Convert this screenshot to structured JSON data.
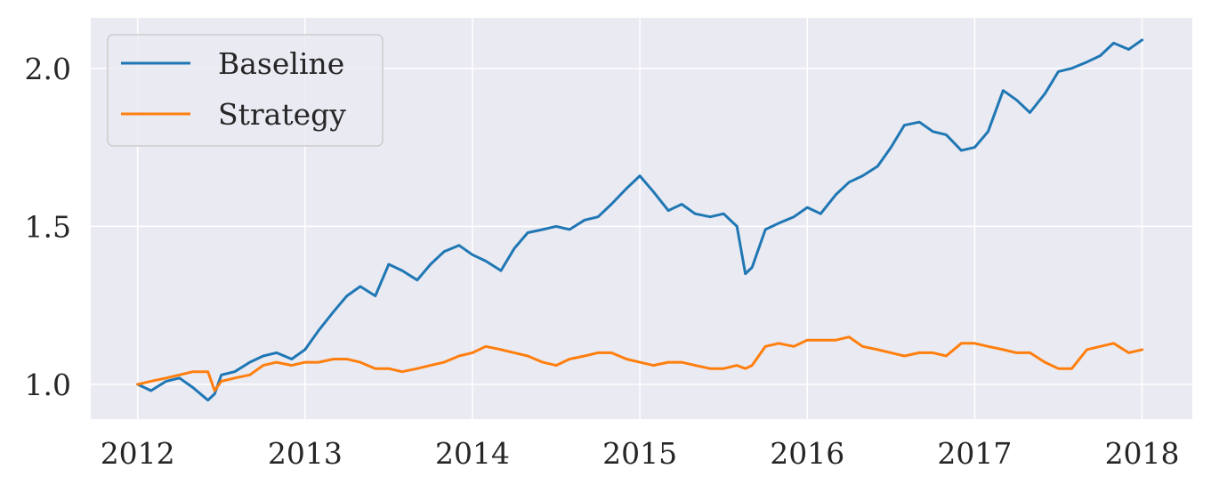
{
  "chart_data": {
    "type": "line",
    "title": "",
    "xlabel": "",
    "ylabel": "",
    "xlim": [
      2011.72,
      2018.3
    ],
    "ylim": [
      0.89,
      2.16
    ],
    "grid": true,
    "legend": {
      "position": "top-left",
      "entries": [
        "Baseline",
        "Strategy"
      ]
    },
    "colors": {
      "Baseline": "#1f77b4",
      "Strategy": "#ff7f0e",
      "background": "#eaeaf2",
      "grid": "#ffffff"
    },
    "x_ticks": [
      2012,
      2013,
      2014,
      2015,
      2016,
      2017,
      2018
    ],
    "x_tick_labels": [
      "2012",
      "2013",
      "2014",
      "2015",
      "2016",
      "2017",
      "2018"
    ],
    "y_ticks": [
      1.0,
      1.5,
      2.0
    ],
    "y_tick_labels": [
      "1.0",
      "1.5",
      "2.0"
    ],
    "series": [
      {
        "name": "Baseline",
        "color": "#1f77b4",
        "x": [
          2012.0,
          2012.08,
          2012.17,
          2012.25,
          2012.33,
          2012.42,
          2012.46,
          2012.5,
          2012.58,
          2012.67,
          2012.75,
          2012.83,
          2012.92,
          2013.0,
          2013.08,
          2013.17,
          2013.25,
          2013.33,
          2013.42,
          2013.5,
          2013.58,
          2013.67,
          2013.75,
          2013.83,
          2013.92,
          2014.0,
          2014.08,
          2014.17,
          2014.25,
          2014.33,
          2014.42,
          2014.5,
          2014.58,
          2014.67,
          2014.75,
          2014.83,
          2014.92,
          2015.0,
          2015.08,
          2015.17,
          2015.25,
          2015.33,
          2015.42,
          2015.5,
          2015.58,
          2015.63,
          2015.67,
          2015.75,
          2015.83,
          2015.92,
          2016.0,
          2016.08,
          2016.17,
          2016.25,
          2016.33,
          2016.42,
          2016.5,
          2016.58,
          2016.67,
          2016.75,
          2016.83,
          2016.92,
          2017.0,
          2017.08,
          2017.17,
          2017.25,
          2017.33,
          2017.42,
          2017.5,
          2017.58,
          2017.67,
          2017.75,
          2017.83,
          2017.92,
          2018.0
        ],
        "values": [
          1.0,
          0.98,
          1.01,
          1.02,
          0.99,
          0.95,
          0.97,
          1.03,
          1.04,
          1.07,
          1.09,
          1.1,
          1.08,
          1.11,
          1.17,
          1.23,
          1.28,
          1.31,
          1.28,
          1.38,
          1.36,
          1.33,
          1.38,
          1.42,
          1.44,
          1.41,
          1.39,
          1.36,
          1.43,
          1.48,
          1.49,
          1.5,
          1.49,
          1.52,
          1.53,
          1.57,
          1.62,
          1.66,
          1.61,
          1.55,
          1.57,
          1.54,
          1.53,
          1.54,
          1.5,
          1.35,
          1.37,
          1.49,
          1.51,
          1.53,
          1.56,
          1.54,
          1.6,
          1.64,
          1.66,
          1.69,
          1.75,
          1.82,
          1.83,
          1.8,
          1.79,
          1.74,
          1.75,
          1.8,
          1.93,
          1.9,
          1.86,
          1.92,
          1.99,
          2.0,
          2.02,
          2.04,
          2.08,
          2.06,
          2.09
        ]
      },
      {
        "name": "Strategy",
        "color": "#ff7f0e",
        "x": [
          2012.0,
          2012.08,
          2012.17,
          2012.25,
          2012.33,
          2012.42,
          2012.46,
          2012.5,
          2012.58,
          2012.67,
          2012.75,
          2012.83,
          2012.92,
          2013.0,
          2013.08,
          2013.17,
          2013.25,
          2013.33,
          2013.42,
          2013.5,
          2013.58,
          2013.67,
          2013.75,
          2013.83,
          2013.92,
          2014.0,
          2014.08,
          2014.17,
          2014.25,
          2014.33,
          2014.42,
          2014.5,
          2014.58,
          2014.67,
          2014.75,
          2014.83,
          2014.92,
          2015.0,
          2015.08,
          2015.17,
          2015.25,
          2015.33,
          2015.42,
          2015.5,
          2015.58,
          2015.63,
          2015.67,
          2015.75,
          2015.83,
          2015.92,
          2016.0,
          2016.08,
          2016.17,
          2016.25,
          2016.33,
          2016.42,
          2016.5,
          2016.58,
          2016.67,
          2016.75,
          2016.83,
          2016.92,
          2017.0,
          2017.08,
          2017.17,
          2017.25,
          2017.33,
          2017.42,
          2017.5,
          2017.58,
          2017.67,
          2017.75,
          2017.83,
          2017.92,
          2018.0
        ],
        "values": [
          1.0,
          1.01,
          1.02,
          1.03,
          1.04,
          1.04,
          0.98,
          1.01,
          1.02,
          1.03,
          1.06,
          1.07,
          1.06,
          1.07,
          1.07,
          1.08,
          1.08,
          1.07,
          1.05,
          1.05,
          1.04,
          1.05,
          1.06,
          1.07,
          1.09,
          1.1,
          1.12,
          1.11,
          1.1,
          1.09,
          1.07,
          1.06,
          1.08,
          1.09,
          1.1,
          1.1,
          1.08,
          1.07,
          1.06,
          1.07,
          1.07,
          1.06,
          1.05,
          1.05,
          1.06,
          1.05,
          1.06,
          1.12,
          1.13,
          1.12,
          1.14,
          1.14,
          1.14,
          1.15,
          1.12,
          1.11,
          1.1,
          1.09,
          1.1,
          1.1,
          1.09,
          1.13,
          1.13,
          1.12,
          1.11,
          1.1,
          1.1,
          1.07,
          1.05,
          1.05,
          1.11,
          1.12,
          1.13,
          1.1,
          1.11
        ]
      }
    ]
  }
}
